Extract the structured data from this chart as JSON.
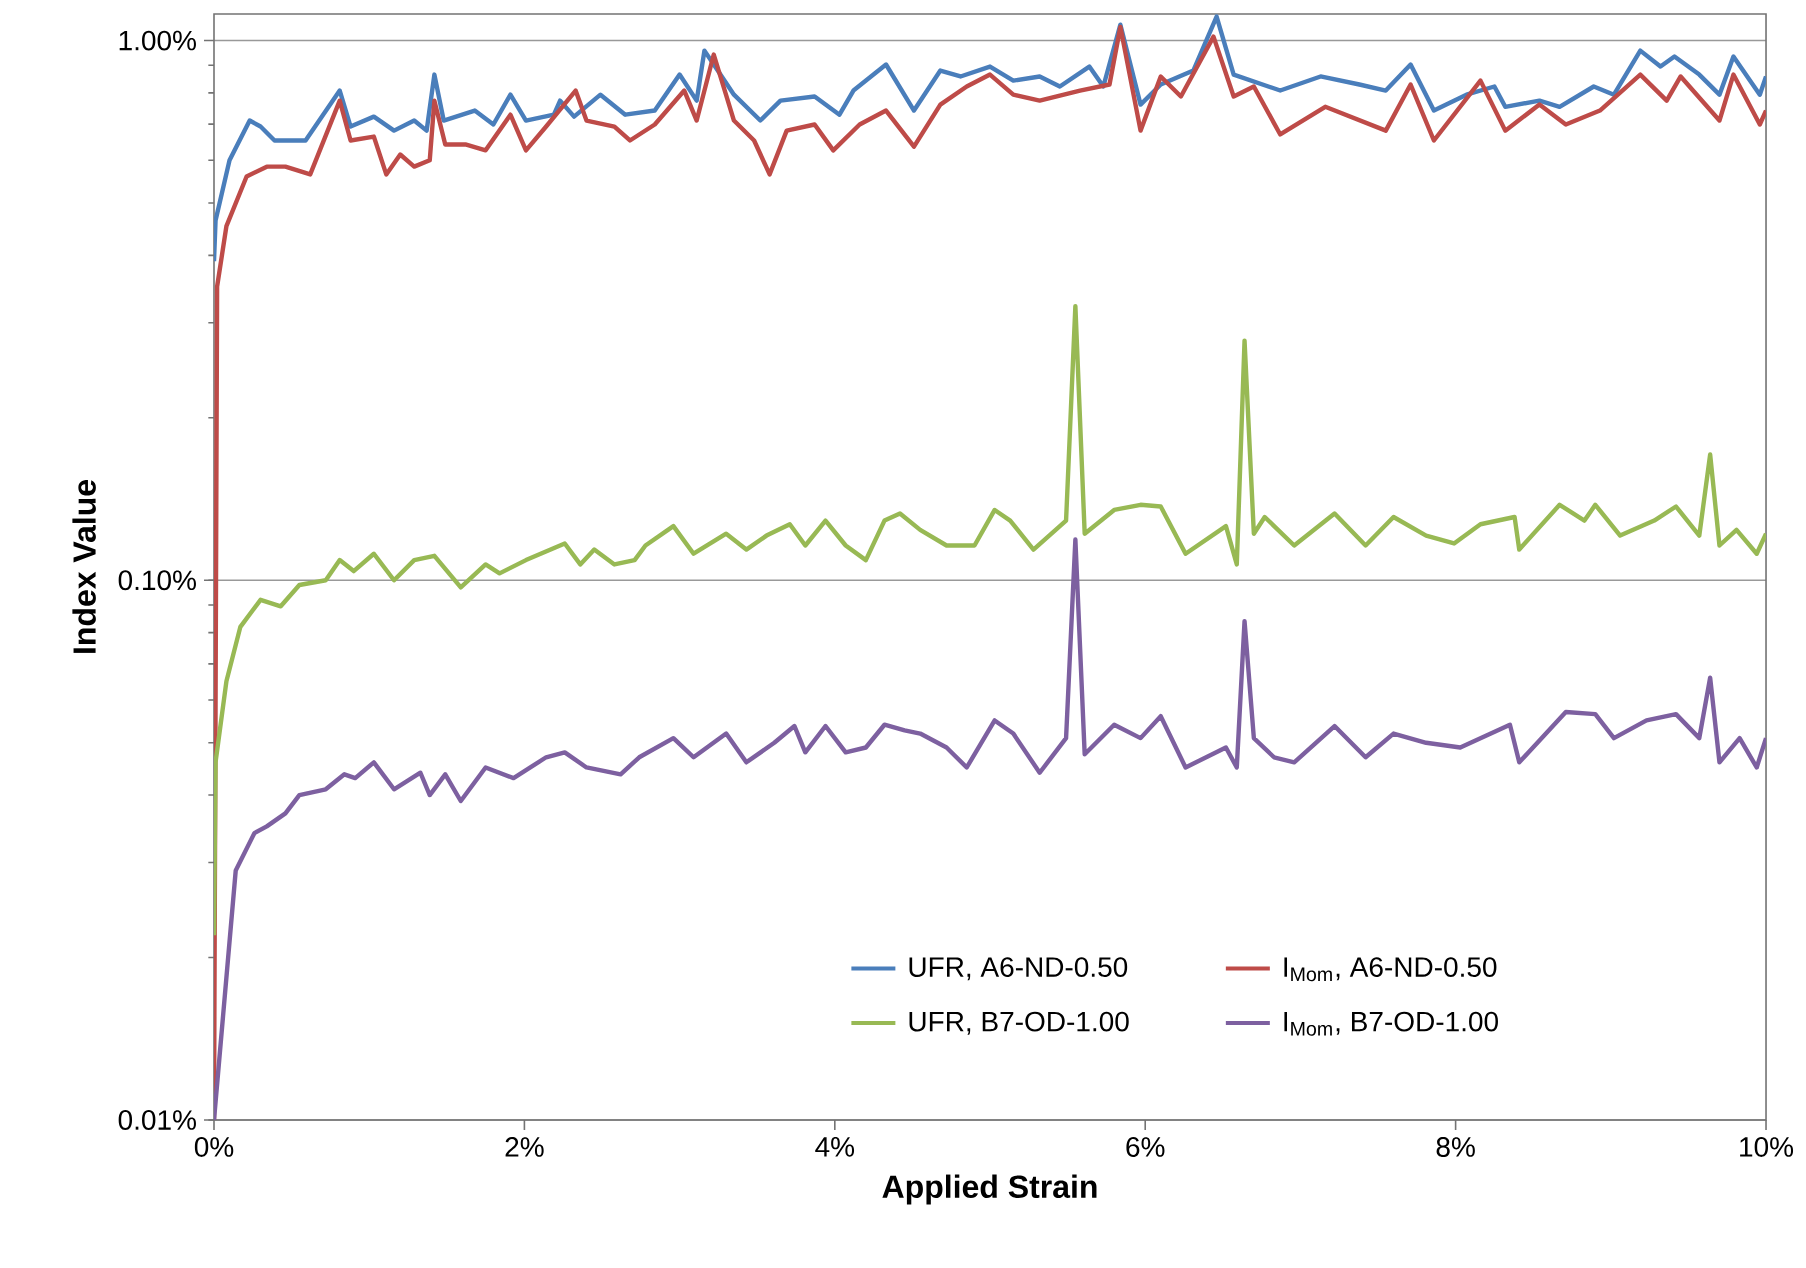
{
  "chart_data": {
    "type": "line",
    "xlabel": "Applied Strain",
    "ylabel": "Index Value",
    "log": "y",
    "grid": "y",
    "legend": "bottom",
    "marker": "none",
    "line_style": "solid",
    "xlim": [
      0,
      10
    ],
    "ylim": [
      0.01,
      1.12
    ],
    "xticks": [
      {
        "value": 0,
        "label": "0%"
      },
      {
        "value": 2,
        "label": "2%"
      },
      {
        "value": 4,
        "label": "4%"
      },
      {
        "value": 6,
        "label": "6%"
      },
      {
        "value": 8,
        "label": "8%"
      },
      {
        "value": 10,
        "label": "10%"
      }
    ],
    "yticks": [
      {
        "value": 0.01,
        "label": "0.01%"
      },
      {
        "value": 0.1,
        "label": "0.10%"
      },
      {
        "value": 1,
        "label": "1.00%"
      }
    ],
    "series": [
      {
        "name": "UFR, A6-ND-0.50",
        "color": "#4a7ebb",
        "x": [
          0,
          0.01,
          0.1,
          0.23,
          0.3,
          0.39,
          0.59,
          0.81,
          0.88,
          1.03,
          1.16,
          1.29,
          1.37,
          1.42,
          1.48,
          1.68,
          1.8,
          1.91,
          2.01,
          2.19,
          2.23,
          2.32,
          2.49,
          2.65,
          2.84,
          3.0,
          3.11,
          3.16,
          3.22,
          3.35,
          3.52,
          3.65,
          3.87,
          4.03,
          4.12,
          4.33,
          4.51,
          4.68,
          4.81,
          5.0,
          5.15,
          5.32,
          5.45,
          5.64,
          5.73,
          5.84,
          5.97,
          6.1,
          6.31,
          6.46,
          6.57,
          6.87,
          7.13,
          7.38,
          7.55,
          7.71,
          7.86,
          8.07,
          8.25,
          8.32,
          8.54,
          8.67,
          8.89,
          9.02,
          9.19,
          9.32,
          9.41,
          9.57,
          9.7,
          9.79,
          9.96,
          10.0
        ],
        "values": [
          0.39,
          0.464,
          0.6,
          0.711,
          0.693,
          0.653,
          0.653,
          0.808,
          0.693,
          0.723,
          0.681,
          0.711,
          0.681,
          0.865,
          0.711,
          0.742,
          0.699,
          0.794,
          0.711,
          0.729,
          0.774,
          0.723,
          0.794,
          0.729,
          0.742,
          0.865,
          0.774,
          0.958,
          0.903,
          0.794,
          0.711,
          0.774,
          0.788,
          0.729,
          0.808,
          0.903,
          0.742,
          0.88,
          0.858,
          0.895,
          0.843,
          0.858,
          0.822,
          0.895,
          0.822,
          1.07,
          0.761,
          0.829,
          0.88,
          1.108,
          0.865,
          0.808,
          0.858,
          0.829,
          0.808,
          0.903,
          0.742,
          0.794,
          0.822,
          0.754,
          0.774,
          0.754,
          0.822,
          0.794,
          0.958,
          0.895,
          0.934,
          0.865,
          0.794,
          0.934,
          0.794,
          0.858
        ]
      },
      {
        "name": "I$_{Mom}$, A6-ND-0.50",
        "color": "#be4b48",
        "x": [
          0,
          0.02,
          0.08,
          0.21,
          0.34,
          0.46,
          0.62,
          0.81,
          0.88,
          1.03,
          1.11,
          1.2,
          1.29,
          1.39,
          1.42,
          1.49,
          1.62,
          1.75,
          1.91,
          2.01,
          2.14,
          2.33,
          2.4,
          2.58,
          2.68,
          2.84,
          3.03,
          3.11,
          3.22,
          3.35,
          3.48,
          3.58,
          3.69,
          3.87,
          3.99,
          4.16,
          4.33,
          4.51,
          4.68,
          4.85,
          5.0,
          5.15,
          5.32,
          5.58,
          5.77,
          5.84,
          5.97,
          6.1,
          6.23,
          6.44,
          6.57,
          6.7,
          6.87,
          7.16,
          7.55,
          7.71,
          7.86,
          8.16,
          8.32,
          8.54,
          8.71,
          8.93,
          9.19,
          9.36,
          9.45,
          9.7,
          9.79,
          9.96,
          10.0
        ],
        "values": [
          0.01,
          0.35,
          0.453,
          0.56,
          0.584,
          0.584,
          0.565,
          0.774,
          0.653,
          0.664,
          0.565,
          0.615,
          0.584,
          0.6,
          0.774,
          0.642,
          0.642,
          0.626,
          0.729,
          0.626,
          0.693,
          0.808,
          0.711,
          0.693,
          0.653,
          0.699,
          0.808,
          0.711,
          0.942,
          0.711,
          0.653,
          0.565,
          0.681,
          0.699,
          0.626,
          0.699,
          0.742,
          0.636,
          0.761,
          0.822,
          0.865,
          0.794,
          0.774,
          0.808,
          0.829,
          1.06,
          0.681,
          0.858,
          0.788,
          1.017,
          0.788,
          0.822,
          0.67,
          0.754,
          0.681,
          0.829,
          0.653,
          0.843,
          0.681,
          0.761,
          0.699,
          0.742,
          0.865,
          0.774,
          0.858,
          0.711,
          0.865,
          0.699,
          0.742
        ]
      },
      {
        "name": "UFR, B7-OD-1.00",
        "color": "#98b954",
        "x": [
          0,
          0.01,
          0.08,
          0.17,
          0.3,
          0.43,
          0.55,
          0.72,
          0.81,
          0.9,
          1.03,
          1.16,
          1.29,
          1.42,
          1.59,
          1.75,
          1.84,
          2.01,
          2.26,
          2.36,
          2.45,
          2.58,
          2.71,
          2.78,
          2.96,
          3.09,
          3.3,
          3.43,
          3.56,
          3.71,
          3.81,
          3.94,
          4.07,
          4.2,
          4.32,
          4.42,
          4.55,
          4.72,
          4.9,
          5.03,
          5.13,
          5.28,
          5.49,
          5.55,
          5.61,
          5.8,
          5.97,
          6.1,
          6.26,
          6.52,
          6.59,
          6.64,
          6.7,
          6.77,
          6.96,
          7.22,
          7.42,
          7.6,
          7.81,
          7.99,
          8.16,
          8.38,
          8.41,
          8.67,
          8.83,
          8.9,
          9.06,
          9.28,
          9.42,
          9.57,
          9.64,
          9.7,
          9.81,
          9.94,
          10.0
        ],
        "values": [
          0.022,
          0.046,
          0.065,
          0.082,
          0.092,
          0.0895,
          0.098,
          0.1,
          0.109,
          0.104,
          0.112,
          0.1,
          0.109,
          0.111,
          0.097,
          0.107,
          0.103,
          0.109,
          0.117,
          0.107,
          0.114,
          0.107,
          0.109,
          0.116,
          0.126,
          0.112,
          0.122,
          0.114,
          0.121,
          0.127,
          0.116,
          0.129,
          0.116,
          0.109,
          0.129,
          0.133,
          0.124,
          0.116,
          0.116,
          0.135,
          0.129,
          0.114,
          0.129,
          0.322,
          0.122,
          0.135,
          0.138,
          0.137,
          0.112,
          0.126,
          0.107,
          0.278,
          0.122,
          0.131,
          0.116,
          0.133,
          0.116,
          0.131,
          0.121,
          0.117,
          0.127,
          0.131,
          0.114,
          0.138,
          0.129,
          0.138,
          0.121,
          0.129,
          0.137,
          0.121,
          0.171,
          0.116,
          0.124,
          0.112,
          0.122
        ]
      },
      {
        "name": "I$_{Mom}$, B7-OD-1.00",
        "color": "#7d60a0",
        "x": [
          0,
          0.14,
          0.26,
          0.34,
          0.46,
          0.55,
          0.72,
          0.84,
          0.91,
          1.03,
          1.16,
          1.33,
          1.39,
          1.49,
          1.59,
          1.75,
          1.93,
          2.14,
          2.26,
          2.4,
          2.62,
          2.74,
          2.96,
          3.09,
          3.3,
          3.43,
          3.61,
          3.74,
          3.81,
          3.94,
          4.07,
          4.2,
          4.32,
          4.45,
          4.55,
          4.72,
          4.85,
          5.03,
          5.15,
          5.32,
          5.49,
          5.55,
          5.61,
          5.8,
          5.97,
          6.1,
          6.26,
          6.52,
          6.59,
          6.64,
          6.7,
          6.83,
          6.96,
          7.22,
          7.42,
          7.6,
          7.81,
          8.03,
          8.35,
          8.41,
          8.71,
          8.9,
          9.02,
          9.23,
          9.42,
          9.57,
          9.64,
          9.7,
          9.83,
          9.94,
          10.0
        ],
        "values": [
          0.01,
          0.029,
          0.034,
          0.035,
          0.037,
          0.04,
          0.041,
          0.0437,
          0.043,
          0.046,
          0.041,
          0.044,
          0.04,
          0.0437,
          0.039,
          0.045,
          0.043,
          0.047,
          0.048,
          0.045,
          0.0437,
          0.047,
          0.051,
          0.047,
          0.052,
          0.046,
          0.05,
          0.0537,
          0.048,
          0.0537,
          0.048,
          0.049,
          0.054,
          0.0527,
          0.052,
          0.049,
          0.045,
          0.055,
          0.052,
          0.044,
          0.051,
          0.119,
          0.0476,
          0.054,
          0.051,
          0.056,
          0.045,
          0.049,
          0.045,
          0.084,
          0.051,
          0.047,
          0.046,
          0.0537,
          0.047,
          0.052,
          0.05,
          0.049,
          0.054,
          0.046,
          0.057,
          0.0565,
          0.051,
          0.055,
          0.0565,
          0.051,
          0.066,
          0.046,
          0.051,
          0.045,
          0.051
        ]
      }
    ]
  }
}
